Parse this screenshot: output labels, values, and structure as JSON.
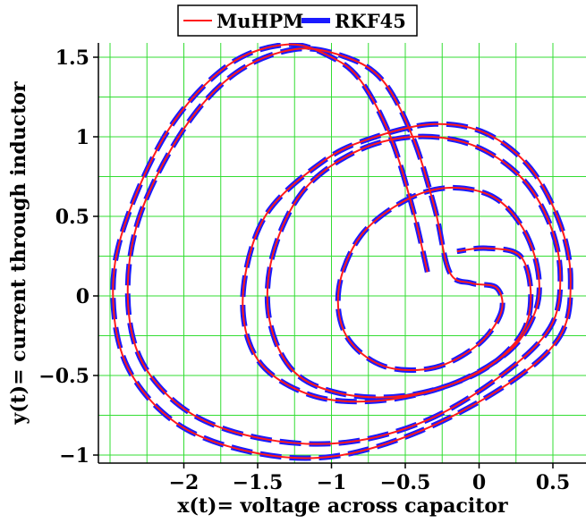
{
  "chart_data": {
    "type": "line",
    "title": "",
    "xlabel": "x(t)= voltage across capacitor",
    "ylabel": "y(t)= current through inductor",
    "xlim": [
      -2.55,
      0.8
    ],
    "ylim": [
      -1.03,
      1.6
    ],
    "xticks": [
      -2,
      -1.5,
      -1,
      -0.5,
      0,
      0.5
    ],
    "xtick_labels": [
      "−2",
      "−1.5",
      "−1",
      "−0.5",
      "0",
      "0.5"
    ],
    "yticks": [
      -1,
      -0.5,
      0,
      0.5,
      1,
      1.5
    ],
    "ytick_labels": [
      "−1",
      "−0.5",
      "0",
      "0.5",
      "1",
      "1.5"
    ],
    "grid": true,
    "grid_color": "#33dd33",
    "legend_position": "top-center",
    "series": [
      {
        "name": "MuHPM",
        "color": "#ff1a1a",
        "style": "solid",
        "points": [
          [
            -0.35,
            0.15
          ],
          [
            -0.45,
            0.55
          ],
          [
            -0.6,
            1.0
          ],
          [
            -0.8,
            1.35
          ],
          [
            -1.0,
            1.5
          ],
          [
            -1.3,
            1.58
          ],
          [
            -1.7,
            1.45
          ],
          [
            -2.1,
            1.05
          ],
          [
            -2.4,
            0.45
          ],
          [
            -2.48,
            0.0
          ],
          [
            -2.38,
            -0.45
          ],
          [
            -2.05,
            -0.8
          ],
          [
            -1.55,
            -0.98
          ],
          [
            -1.0,
            -1.01
          ],
          [
            -0.4,
            -0.85
          ],
          [
            0.2,
            -0.55
          ],
          [
            0.55,
            -0.25
          ],
          [
            0.62,
            0.1
          ],
          [
            0.55,
            0.45
          ],
          [
            0.35,
            0.8
          ],
          [
            0.05,
            1.02
          ],
          [
            -0.3,
            1.08
          ],
          [
            -0.7,
            1.0
          ],
          [
            -1.05,
            0.85
          ],
          [
            -1.45,
            0.5
          ],
          [
            -1.6,
            0.0
          ],
          [
            -1.5,
            -0.4
          ],
          [
            -1.15,
            -0.62
          ],
          [
            -0.7,
            -0.66
          ],
          [
            -0.2,
            -0.56
          ],
          [
            0.2,
            -0.35
          ],
          [
            0.38,
            -0.1
          ],
          [
            0.4,
            0.15
          ],
          [
            0.3,
            0.42
          ],
          [
            0.1,
            0.62
          ],
          [
            -0.2,
            0.68
          ],
          [
            -0.5,
            0.6
          ],
          [
            -0.8,
            0.38
          ],
          [
            -0.95,
            0.05
          ],
          [
            -0.9,
            -0.25
          ],
          [
            -0.65,
            -0.44
          ],
          [
            -0.3,
            -0.45
          ],
          [
            0.0,
            -0.3
          ],
          [
            0.15,
            -0.1
          ],
          [
            0.12,
            0.05
          ],
          [
            -0.05,
            0.08
          ],
          [
            -0.2,
            0.15
          ],
          [
            -0.3,
            0.55
          ],
          [
            -0.45,
            1.0
          ],
          [
            -0.65,
            1.35
          ],
          [
            -0.9,
            1.5
          ],
          [
            -1.25,
            1.55
          ],
          [
            -1.65,
            1.4
          ],
          [
            -2.0,
            1.05
          ],
          [
            -2.3,
            0.5
          ],
          [
            -2.38,
            0.0
          ],
          [
            -2.28,
            -0.42
          ],
          [
            -1.95,
            -0.74
          ],
          [
            -1.45,
            -0.9
          ],
          [
            -0.9,
            -0.92
          ],
          [
            -0.35,
            -0.78
          ],
          [
            0.15,
            -0.5
          ],
          [
            0.48,
            -0.2
          ],
          [
            0.55,
            0.12
          ],
          [
            0.48,
            0.45
          ],
          [
            0.28,
            0.75
          ],
          [
            -0.05,
            0.95
          ],
          [
            -0.45,
            1.0
          ],
          [
            -0.85,
            0.9
          ],
          [
            -1.2,
            0.65
          ],
          [
            -1.4,
            0.25
          ],
          [
            -1.42,
            -0.15
          ],
          [
            -1.25,
            -0.48
          ],
          [
            -0.9,
            -0.62
          ],
          [
            -0.45,
            -0.62
          ],
          [
            0.0,
            -0.48
          ],
          [
            0.28,
            -0.25
          ],
          [
            0.35,
            0.0
          ],
          [
            0.28,
            0.25
          ],
          [
            0.05,
            0.3
          ],
          [
            -0.15,
            0.28
          ]
        ]
      },
      {
        "name": "RKF45",
        "color": "#1a1aff",
        "style": "dashed",
        "points": [
          [
            -0.35,
            0.15
          ],
          [
            -0.45,
            0.55
          ],
          [
            -0.6,
            1.0
          ],
          [
            -0.8,
            1.35
          ],
          [
            -1.0,
            1.5
          ],
          [
            -1.3,
            1.58
          ],
          [
            -1.7,
            1.45
          ],
          [
            -2.1,
            1.05
          ],
          [
            -2.4,
            0.45
          ],
          [
            -2.48,
            0.0
          ],
          [
            -2.38,
            -0.45
          ],
          [
            -2.05,
            -0.8
          ],
          [
            -1.55,
            -0.98
          ],
          [
            -1.0,
            -1.01
          ],
          [
            -0.4,
            -0.85
          ],
          [
            0.2,
            -0.55
          ],
          [
            0.55,
            -0.25
          ],
          [
            0.62,
            0.1
          ],
          [
            0.55,
            0.45
          ],
          [
            0.35,
            0.8
          ],
          [
            0.05,
            1.02
          ],
          [
            -0.3,
            1.08
          ],
          [
            -0.7,
            1.0
          ],
          [
            -1.05,
            0.85
          ],
          [
            -1.45,
            0.5
          ],
          [
            -1.6,
            0.0
          ],
          [
            -1.5,
            -0.4
          ],
          [
            -1.15,
            -0.62
          ],
          [
            -0.7,
            -0.66
          ],
          [
            -0.2,
            -0.56
          ],
          [
            0.2,
            -0.35
          ],
          [
            0.38,
            -0.1
          ],
          [
            0.4,
            0.15
          ],
          [
            0.3,
            0.42
          ],
          [
            0.1,
            0.62
          ],
          [
            -0.2,
            0.68
          ],
          [
            -0.5,
            0.6
          ],
          [
            -0.8,
            0.38
          ],
          [
            -0.95,
            0.05
          ],
          [
            -0.9,
            -0.25
          ],
          [
            -0.65,
            -0.44
          ],
          [
            -0.3,
            -0.45
          ],
          [
            0.0,
            -0.3
          ],
          [
            0.15,
            -0.1
          ],
          [
            0.12,
            0.05
          ],
          [
            -0.05,
            0.08
          ],
          [
            -0.2,
            0.15
          ],
          [
            -0.3,
            0.55
          ],
          [
            -0.45,
            1.0
          ],
          [
            -0.65,
            1.35
          ],
          [
            -0.9,
            1.5
          ],
          [
            -1.25,
            1.55
          ],
          [
            -1.65,
            1.4
          ],
          [
            -2.0,
            1.05
          ],
          [
            -2.3,
            0.5
          ],
          [
            -2.38,
            0.0
          ],
          [
            -2.28,
            -0.42
          ],
          [
            -1.95,
            -0.74
          ],
          [
            -1.45,
            -0.9
          ],
          [
            -0.9,
            -0.92
          ],
          [
            -0.35,
            -0.78
          ],
          [
            0.15,
            -0.5
          ],
          [
            0.48,
            -0.2
          ],
          [
            0.55,
            0.12
          ],
          [
            0.48,
            0.45
          ],
          [
            0.28,
            0.75
          ],
          [
            -0.05,
            0.95
          ],
          [
            -0.45,
            1.0
          ],
          [
            -0.85,
            0.9
          ],
          [
            -1.2,
            0.65
          ],
          [
            -1.4,
            0.25
          ],
          [
            -1.42,
            -0.15
          ],
          [
            -1.25,
            -0.48
          ],
          [
            -0.9,
            -0.62
          ],
          [
            -0.45,
            -0.62
          ],
          [
            0.0,
            -0.48
          ],
          [
            0.28,
            -0.25
          ],
          [
            0.35,
            0.0
          ],
          [
            0.28,
            0.25
          ],
          [
            0.05,
            0.3
          ],
          [
            -0.15,
            0.28
          ]
        ]
      }
    ]
  }
}
